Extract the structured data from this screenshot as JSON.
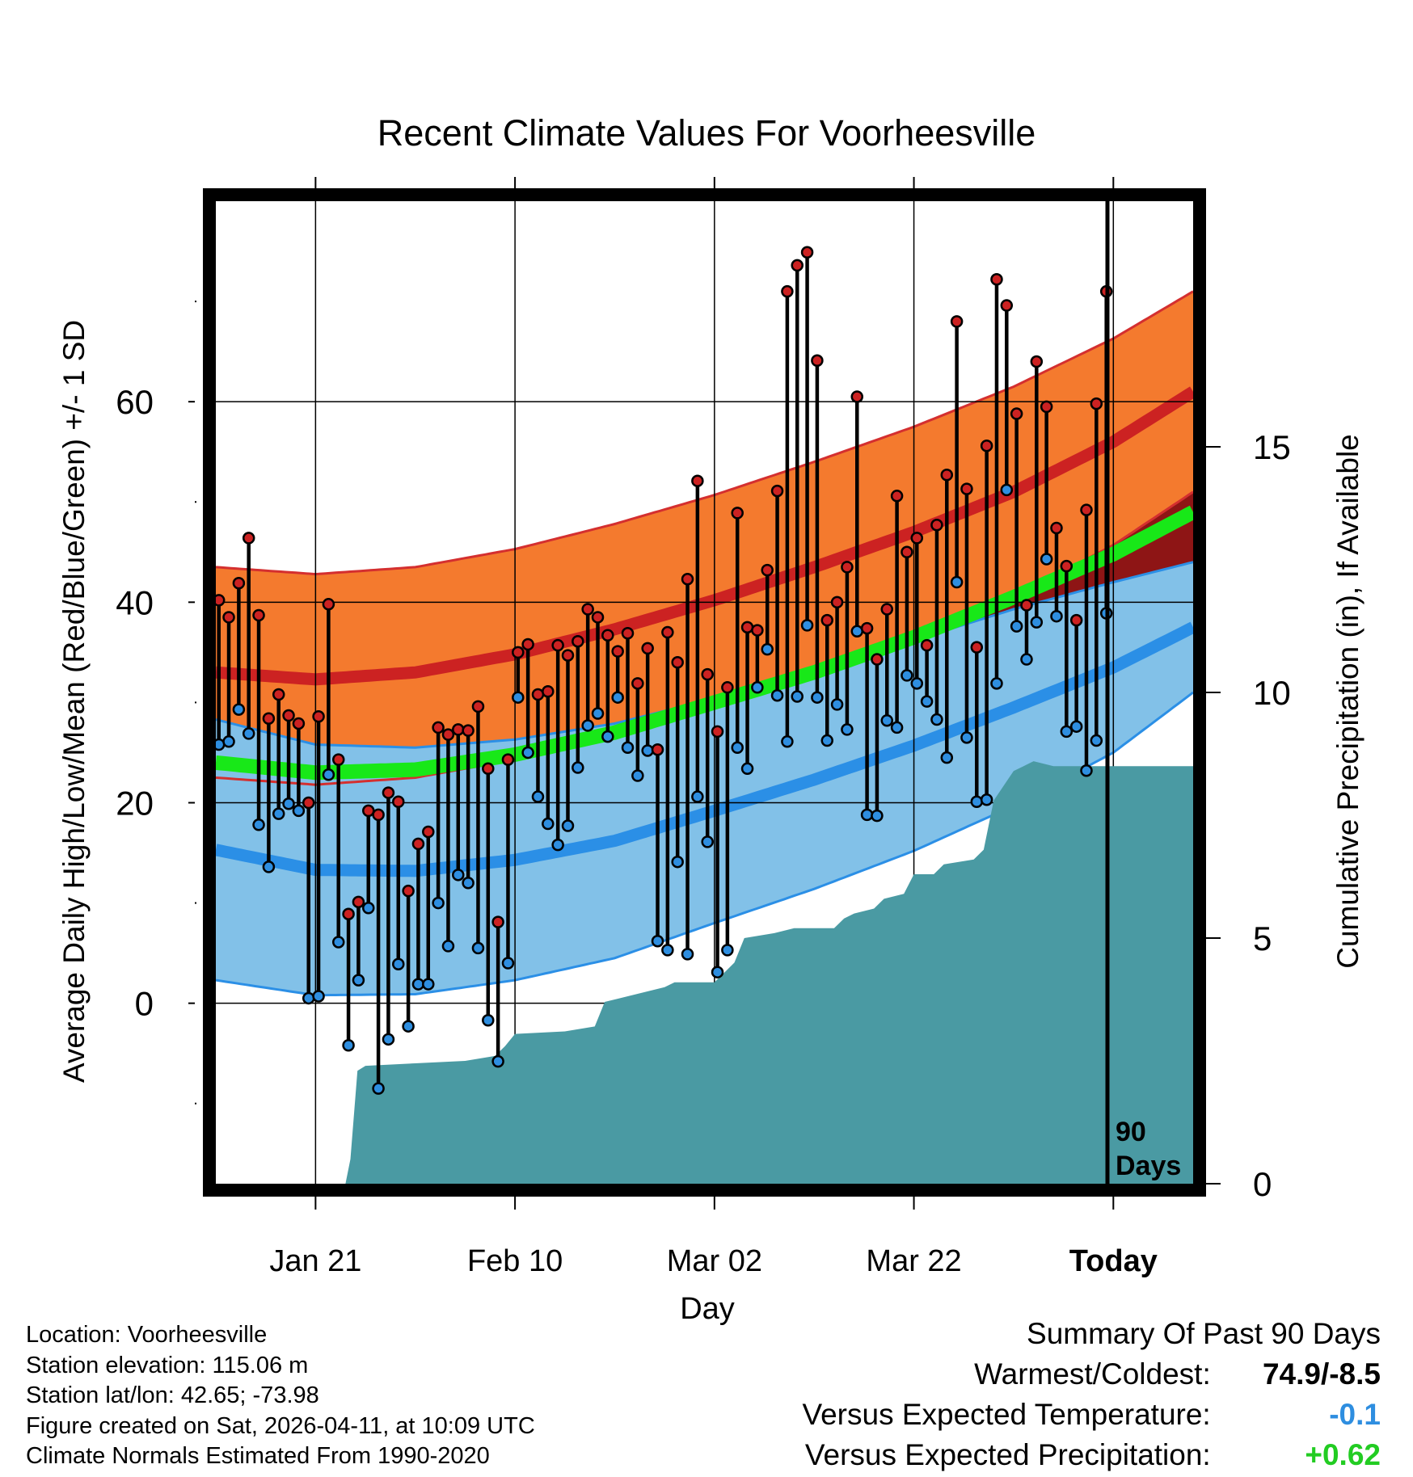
{
  "chart_data": {
    "type": "line",
    "title": "Recent Climate Values For Voorheesville",
    "xlabel": "Day",
    "ylabel_left": "Average Daily High/Low/Mean (Red/Blue/Green) +/- 1 SD",
    "ylabel_right": "Cumulative Precipitation (in), If Available",
    "x_range_days": [
      0,
      98
    ],
    "y_range_temp": [
      -18,
      80
    ],
    "y_range_precip": [
      0,
      20
    ],
    "x_ticks": [
      {
        "day": 10,
        "label": "Jan 21"
      },
      {
        "day": 30,
        "label": "Feb 10"
      },
      {
        "day": 50,
        "label": "Mar 02"
      },
      {
        "day": 70,
        "label": "Mar 22"
      },
      {
        "day": 90,
        "label": "Today"
      }
    ],
    "y_ticks_left": [
      "0",
      "20",
      "40",
      "60"
    ],
    "y_ticks_right": [
      "0",
      "5",
      "10",
      "15"
    ],
    "today_marker_label": [
      "90",
      "Days"
    ],
    "normals": {
      "days": [
        0,
        10,
        20,
        30,
        40,
        50,
        60,
        70,
        80,
        90,
        98
      ],
      "high_mean": [
        33,
        32.3,
        33,
        34.8,
        37.3,
        40.2,
        43.5,
        47,
        51,
        56,
        61
      ],
      "high_sd": [
        10.5,
        10.5,
        10.5,
        10.5,
        10.5,
        10.5,
        10.5,
        10.5,
        10.5,
        10.3,
        10
      ],
      "low_mean": [
        15.3,
        13.3,
        13.2,
        14.3,
        16.2,
        19.2,
        22.3,
        25.7,
        29.5,
        33.5,
        37.5
      ],
      "low_sd": [
        13,
        12.5,
        12.3,
        12,
        11.7,
        11.2,
        10.9,
        10.5,
        9.8,
        8.5,
        6.5
      ],
      "avg_mean": [
        24,
        23,
        23.3,
        24.8,
        27,
        30,
        33,
        36.5,
        40.5,
        44.8,
        49
      ]
    },
    "series": [
      {
        "name": "Daily High",
        "color": "#cc2222",
        "values": [
          40.2,
          38.5,
          41.9,
          46.4,
          38.7,
          28.4,
          30.8,
          28.7,
          27.9,
          20.0,
          28.6,
          39.8,
          24.3,
          8.9,
          10.1,
          19.2,
          18.8,
          21.0,
          20.1,
          11.2,
          15.9,
          17.1,
          27.5,
          26.8,
          27.3,
          27.2,
          29.6,
          23.4,
          8.1,
          24.3,
          35.0,
          35.8,
          30.8,
          31.1,
          35.7,
          34.7,
          36.1,
          39.3,
          38.5,
          36.7,
          35.1,
          36.9,
          31.9,
          35.4,
          25.3,
          37.0,
          34.0,
          42.3,
          52.1,
          32.8,
          27.1,
          31.5,
          48.9,
          37.5,
          37.2,
          43.2,
          51.1,
          71.0,
          73.6,
          74.9,
          64.1,
          38.2,
          40.0,
          43.5,
          60.5,
          37.4,
          34.3,
          39.3,
          50.6,
          45.0,
          46.4,
          35.7,
          47.7,
          52.7,
          68.0,
          51.3,
          35.5,
          55.6,
          72.2,
          69.6,
          58.8,
          39.7,
          64.0,
          59.5,
          47.4,
          43.6,
          38.2,
          49.2,
          59.8,
          71.0
        ]
      },
      {
        "name": "Daily Low",
        "color": "#2e8ee0",
        "values": [
          25.8,
          26.1,
          29.3,
          26.9,
          17.8,
          13.6,
          18.9,
          19.9,
          19.2,
          0.5,
          0.7,
          22.8,
          6.1,
          -4.2,
          2.3,
          9.5,
          -8.5,
          -3.6,
          3.9,
          -2.3,
          1.9,
          1.9,
          10.0,
          5.7,
          12.8,
          12.0,
          5.5,
          -1.7,
          -5.8,
          4.0,
          30.5,
          25.0,
          20.6,
          17.9,
          15.8,
          17.7,
          23.5,
          27.7,
          28.9,
          26.6,
          30.5,
          25.5,
          22.7,
          25.2,
          6.2,
          5.3,
          14.1,
          4.9,
          20.6,
          16.1,
          3.1,
          5.3,
          25.5,
          23.4,
          31.5,
          35.3,
          30.7,
          26.1,
          30.6,
          37.7,
          30.5,
          26.2,
          29.8,
          27.3,
          37.1,
          18.8,
          18.7,
          28.2,
          27.5,
          32.7,
          31.9,
          30.1,
          28.3,
          24.5,
          42.0,
          26.5,
          20.1,
          20.3,
          31.9,
          51.2,
          37.6,
          34.3,
          38.0,
          44.3,
          38.6,
          27.1,
          27.6,
          23.2,
          26.2,
          38.9
        ]
      }
    ],
    "cumulative_precip": {
      "days": [
        0,
        13,
        13.5,
        14.2,
        15,
        20,
        25,
        28,
        29,
        30,
        35,
        38,
        39,
        45,
        46,
        47,
        50,
        51,
        52,
        53,
        56,
        58,
        62,
        63,
        64,
        66,
        67,
        69,
        70,
        72,
        73,
        76,
        77,
        78,
        79,
        80,
        81,
        82,
        84,
        86,
        98
      ],
      "values": [
        0,
        0,
        0.5,
        2.3,
        2.4,
        2.45,
        2.5,
        2.6,
        2.8,
        3.05,
        3.1,
        3.2,
        3.7,
        4.0,
        4.1,
        4.1,
        4.1,
        4.3,
        4.5,
        5.0,
        5.1,
        5.2,
        5.2,
        5.4,
        5.5,
        5.6,
        5.8,
        5.9,
        6.3,
        6.3,
        6.5,
        6.6,
        6.8,
        7.8,
        8.1,
        8.4,
        8.5,
        8.6,
        8.5,
        8.5,
        8.5
      ]
    },
    "colors": {
      "high_band": "#f47a2e",
      "high_band_edge": "#d42f2f",
      "high_band_dark": "#8e1515",
      "high_mean": "#cc2222",
      "low_band": "#82c1e8",
      "low_band_edge": "#2b8fe6",
      "low_mean": "#2b8fe6",
      "avg_mean": "#18e818",
      "precip": "#4a9aa3"
    }
  },
  "footer": {
    "lines": [
      "Location: Voorheesville",
      "Station elevation: 115.06 m",
      "Station lat/lon: 42.65; -73.98",
      "Figure created on Sat, 2026-04-11, at 10:09 UTC",
      "Climate Normals Estimated From 1990-2020"
    ]
  },
  "summary": {
    "heading": "Summary Of Past 90 Days",
    "warmest_coldest_label": "Warmest/Coldest:",
    "warmest_coldest_value": "74.9/-8.5",
    "temp_label": "Versus Expected Temperature:",
    "temp_value": "-0.1",
    "temp_color": "#2e8ee0",
    "precip_label": "Versus Expected Precipitation:",
    "precip_value": "+0.62",
    "precip_color": "#22cc22"
  }
}
